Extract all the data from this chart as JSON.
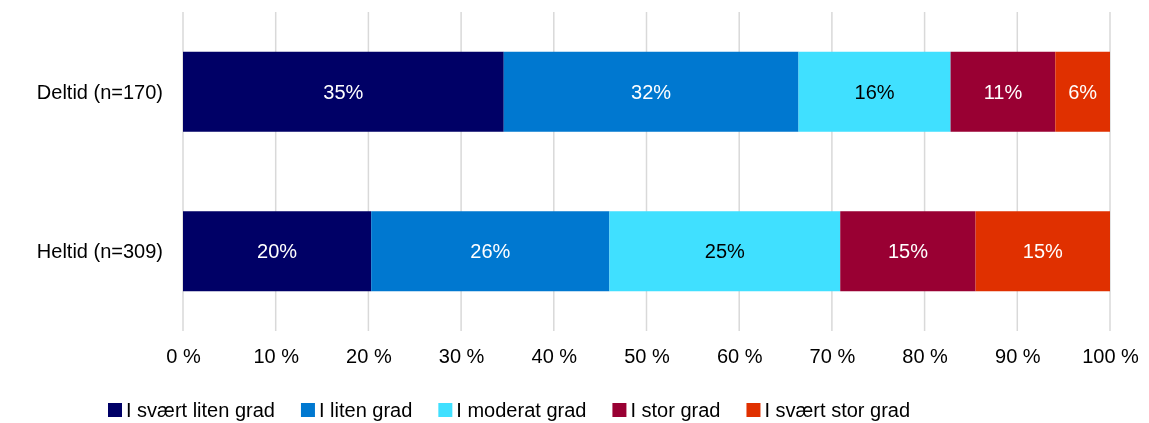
{
  "chart_data": {
    "type": "bar",
    "orientation": "horizontal",
    "stacked": true,
    "categories": [
      "Deltid (n=170)",
      "Heltid (n=309)"
    ],
    "series": [
      {
        "name": "I svært liten grad",
        "color": "#000066",
        "values": [
          34.6,
          20.3
        ],
        "value_labels": [
          "35%",
          "20%"
        ]
      },
      {
        "name": "I liten grad",
        "color": "#0078d0",
        "values": [
          31.8,
          25.7
        ],
        "value_labels": [
          "32%",
          "26%"
        ]
      },
      {
        "name": "I moderat grad",
        "color": "#40e0ff",
        "values": [
          16.4,
          24.9
        ],
        "value_labels": [
          "16%",
          "25%"
        ]
      },
      {
        "name": "I stor grad",
        "color": "#990033",
        "values": [
          11.3,
          14.6
        ],
        "value_labels": [
          "11%",
          "15%"
        ]
      },
      {
        "name": "I svært stor grad",
        "color": "#e03000",
        "values": [
          5.9,
          14.5
        ],
        "value_labels": [
          "6%",
          "15%"
        ]
      }
    ],
    "xlim": [
      0,
      100
    ],
    "xticks": [
      {
        "value": 0,
        "label": "0 %"
      },
      {
        "value": 10,
        "label": "10 %"
      },
      {
        "value": 20,
        "label": "20 %"
      },
      {
        "value": 30,
        "label": "30 %"
      },
      {
        "value": 40,
        "label": "40 %"
      },
      {
        "value": 50,
        "label": "50 %"
      },
      {
        "value": 60,
        "label": "60 %"
      },
      {
        "value": 70,
        "label": "70 %"
      },
      {
        "value": 80,
        "label": "80 %"
      },
      {
        "value": 90,
        "label": "90 %"
      },
      {
        "value": 100,
        "label": "100 %"
      }
    ],
    "grid": "x",
    "legend": "bottom"
  }
}
